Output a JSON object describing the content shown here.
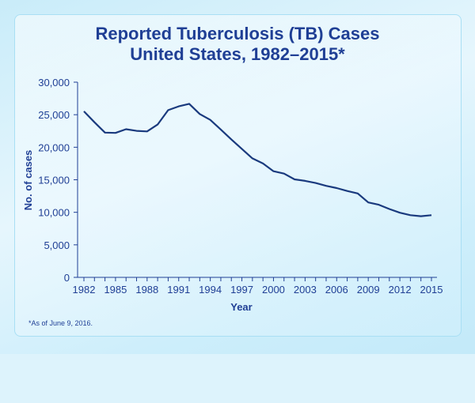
{
  "chart_data": {
    "type": "line",
    "title": "Reported Tuberculosis (TB) Cases",
    "subtitle": "United States, 1982–2015*",
    "xlabel": "Year",
    "ylabel": "No. of cases",
    "ylim": [
      0,
      30000
    ],
    "xlim": [
      1982,
      2015
    ],
    "y_ticks": [
      "0",
      "5,000",
      "10,000",
      "15,000",
      "20,000",
      "25,000",
      "30,000"
    ],
    "x_ticks": [
      "1982",
      "1985",
      "1988",
      "1991",
      "1994",
      "1997",
      "2000",
      "2003",
      "2006",
      "2009",
      "2012",
      "2015"
    ],
    "grid": false,
    "line_color": "#1a3a7e",
    "x": [
      1982,
      1983,
      1984,
      1985,
      1986,
      1987,
      1988,
      1989,
      1990,
      1991,
      1992,
      1993,
      1994,
      1995,
      1996,
      1997,
      1998,
      1999,
      2000,
      2001,
      2002,
      2003,
      2004,
      2005,
      2006,
      2007,
      2008,
      2009,
      2010,
      2011,
      2012,
      2013,
      2014,
      2015
    ],
    "values": [
      25520,
      23846,
      22255,
      22201,
      22768,
      22517,
      22436,
      23495,
      25701,
      26283,
      26673,
      25102,
      24206,
      22727,
      21210,
      19751,
      18286,
      17500,
      16308,
      15945,
      15055,
      14835,
      14499,
      14065,
      13727,
      13270,
      12893,
      11520,
      11159,
      10510,
      9941,
      9561,
      9398,
      9557
    ],
    "footnote": "*As of June 9, 2016."
  }
}
